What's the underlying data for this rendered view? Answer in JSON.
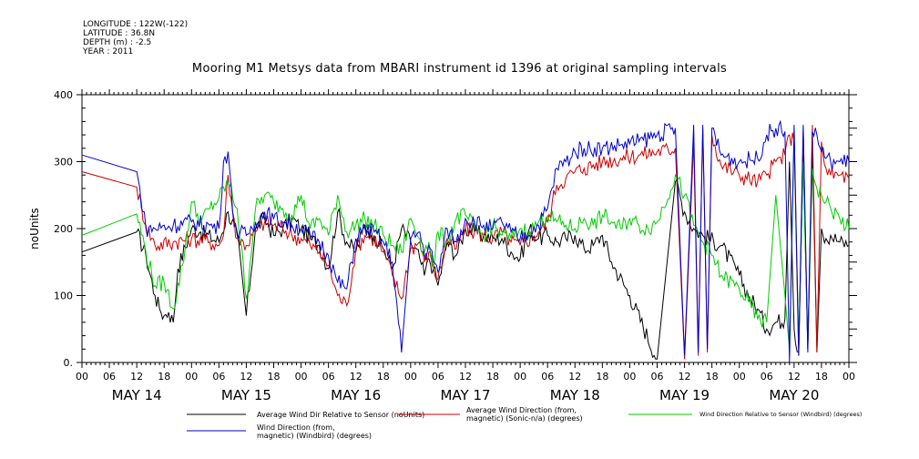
{
  "header": {
    "longitude": "LONGITUDE : 122W(-122)",
    "latitude": "LATITUDE : 36.8N",
    "depth": "DEPTH (m) : -2.5",
    "year": "YEAR : 2011",
    "title": "Mooring M1 Metsys data from MBARI instrument id 1396 at original sampling intervals"
  },
  "chart_data": {
    "type": "line",
    "ylabel": "noUnits",
    "ylim": [
      0,
      400
    ],
    "yticks": [
      "0.",
      "100",
      "200",
      "300",
      "400"
    ],
    "xlim_hours": [
      0,
      168
    ],
    "hour_ticks": [
      "00",
      "06",
      "12",
      "18",
      "00",
      "06",
      "12",
      "18",
      "00",
      "06",
      "12",
      "18",
      "00",
      "06",
      "12",
      "18",
      "00",
      "06",
      "12",
      "18",
      "00",
      "06",
      "12",
      "18",
      "00",
      "06",
      "12",
      "18",
      "00"
    ],
    "day_labels": [
      "MAY 14",
      "MAY 15",
      "MAY 16",
      "MAY 17",
      "MAY 18",
      "MAY 19",
      "MAY 20"
    ],
    "grid": false,
    "legend_position": "bottom",
    "series": [
      {
        "name": "Average Wind Dir Relative to Sensor (noUnits)",
        "color": "#000000",
        "x": [
          0,
          12,
          14,
          16,
          17,
          18,
          19,
          20,
          21,
          24,
          26,
          30,
          32,
          34,
          36,
          38,
          40,
          42,
          44,
          46,
          48,
          50,
          52,
          54,
          56,
          58,
          60,
          62,
          64,
          66,
          68,
          70,
          72,
          74,
          75,
          76,
          77,
          78,
          80,
          82,
          84,
          86,
          88,
          90,
          92,
          94,
          96,
          98,
          100,
          102,
          104,
          106,
          108,
          110,
          112,
          114,
          116,
          120,
          126,
          130,
          132,
          134,
          136,
          140,
          144,
          146,
          148,
          150,
          152,
          154,
          155,
          156,
          157,
          158,
          159,
          160,
          161,
          162,
          163,
          164,
          166,
          168
        ],
        "y": [
          165,
          195,
          160,
          100,
          80,
          70,
          75,
          60,
          140,
          200,
          195,
          180,
          225,
          190,
          70,
          200,
          215,
          190,
          200,
          215,
          200,
          185,
          175,
          140,
          225,
          180,
          165,
          205,
          190,
          170,
          140,
          200,
          180,
          155,
          130,
          155,
          140,
          115,
          180,
          160,
          200,
          195,
          190,
          185,
          185,
          165,
          155,
          200,
          185,
          190,
          180,
          185,
          190,
          170,
          175,
          190,
          150,
          100,
          5,
          270,
          225,
          200,
          190,
          175,
          130,
          100,
          80,
          50,
          60,
          65,
          300,
          50,
          15,
          310,
          20,
          320,
          15,
          200,
          185,
          190,
          180,
          175
        ]
      },
      {
        "name": "Average Wind Direction (from, magnetic) (Sonic-n/a) (degrees)",
        "color": "#cc0000",
        "x": [
          0,
          12,
          14,
          16,
          20,
          24,
          28,
          30,
          31,
          32,
          33,
          34,
          36,
          38,
          40,
          42,
          44,
          46,
          48,
          50,
          52,
          54,
          56,
          58,
          60,
          62,
          64,
          66,
          68,
          70,
          72,
          74,
          75,
          76,
          77,
          78,
          80,
          82,
          84,
          86,
          88,
          90,
          92,
          94,
          96,
          100,
          102,
          104,
          106,
          108,
          110,
          114,
          118,
          122,
          126,
          130,
          132,
          134,
          135,
          136,
          137,
          138,
          140,
          144,
          148,
          150,
          152,
          154,
          155,
          156,
          157,
          158,
          159,
          160,
          161,
          162,
          163,
          164,
          166,
          168
        ],
        "y": [
          285,
          262,
          205,
          175,
          180,
          185,
          180,
          175,
          190,
          280,
          225,
          185,
          175,
          195,
          210,
          205,
          200,
          190,
          185,
          175,
          165,
          145,
          100,
          85,
          170,
          190,
          185,
          165,
          130,
          95,
          170,
          180,
          150,
          165,
          140,
          125,
          185,
          170,
          200,
          195,
          190,
          185,
          195,
          180,
          175,
          195,
          210,
          265,
          275,
          285,
          290,
          300,
          305,
          310,
          315,
          320,
          5,
          330,
          10,
          350,
          15,
          340,
          295,
          280,
          270,
          280,
          300,
          310,
          340,
          330,
          10,
          350,
          20,
          355,
          15,
          330,
          290,
          280,
          280,
          275
        ]
      },
      {
        "name": "Wind Direction Relative to Sensor (Windbird) (degrees)",
        "color": "#00cc00",
        "x": [
          0,
          12,
          14,
          16,
          18,
          20,
          22,
          24,
          26,
          28,
          30,
          32,
          34,
          36,
          38,
          40,
          42,
          44,
          46,
          48,
          50,
          52,
          54,
          56,
          58,
          60,
          62,
          64,
          66,
          68,
          70,
          72,
          74,
          75,
          76,
          77,
          78,
          80,
          82,
          84,
          86,
          88,
          90,
          92,
          94,
          96,
          98,
          100,
          102,
          104,
          106,
          108,
          110,
          112,
          114,
          116,
          118,
          120,
          122,
          124,
          126,
          130,
          132,
          134,
          136,
          138,
          140,
          144,
          146,
          148,
          150,
          152,
          154,
          155,
          156,
          157,
          158,
          159,
          160,
          161,
          162,
          163,
          164,
          166,
          168
        ],
        "y": [
          190,
          222,
          165,
          115,
          120,
          80,
          145,
          240,
          210,
          230,
          245,
          270,
          230,
          95,
          230,
          250,
          240,
          230,
          220,
          250,
          200,
          215,
          190,
          250,
          195,
          205,
          215,
          205,
          190,
          175,
          165,
          215,
          185,
          165,
          180,
          140,
          195,
          180,
          215,
          220,
          200,
          190,
          205,
          190,
          185,
          200,
          195,
          210,
          220,
          210,
          205,
          200,
          215,
          205,
          220,
          210,
          200,
          215,
          205,
          200,
          210,
          280,
          250,
          205,
          180,
          160,
          130,
          110,
          90,
          65,
          60,
          250,
          100,
          20,
          340,
          30,
          300,
          25,
          290,
          260,
          250,
          240,
          230,
          215,
          200
        ]
      },
      {
        "name": "Wind Direction (from, magnetic) (Windbird) (degrees)",
        "color": "#0000cc",
        "x": [
          0,
          12,
          14,
          16,
          20,
          24,
          28,
          30,
          31,
          32,
          33,
          34,
          36,
          38,
          40,
          42,
          44,
          46,
          48,
          50,
          52,
          54,
          56,
          58,
          60,
          62,
          64,
          66,
          68,
          70,
          72,
          74,
          75,
          76,
          77,
          78,
          80,
          82,
          84,
          86,
          88,
          90,
          92,
          94,
          96,
          100,
          102,
          104,
          106,
          108,
          110,
          114,
          118,
          122,
          126,
          130,
          132,
          134,
          135,
          136,
          137,
          138,
          140,
          144,
          148,
          150,
          152,
          154,
          155,
          156,
          157,
          158,
          159,
          160,
          161,
          162,
          163,
          164,
          166,
          168
        ],
        "y": [
          310,
          285,
          200,
          200,
          205,
          210,
          205,
          200,
          300,
          315,
          225,
          195,
          190,
          210,
          225,
          215,
          210,
          205,
          200,
          190,
          180,
          160,
          120,
          110,
          185,
          200,
          195,
          180,
          150,
          15,
          185,
          195,
          160,
          175,
          150,
          135,
          200,
          180,
          215,
          210,
          205,
          200,
          210,
          195,
          185,
          205,
          230,
          290,
          300,
          315,
          320,
          320,
          325,
          330,
          340,
          350,
          10,
          355,
          15,
          355,
          20,
          350,
          310,
          300,
          305,
          340,
          350,
          345,
          0,
          355,
          10,
          355,
          15,
          345,
          340,
          315,
          305,
          300,
          300,
          300
        ]
      }
    ]
  }
}
